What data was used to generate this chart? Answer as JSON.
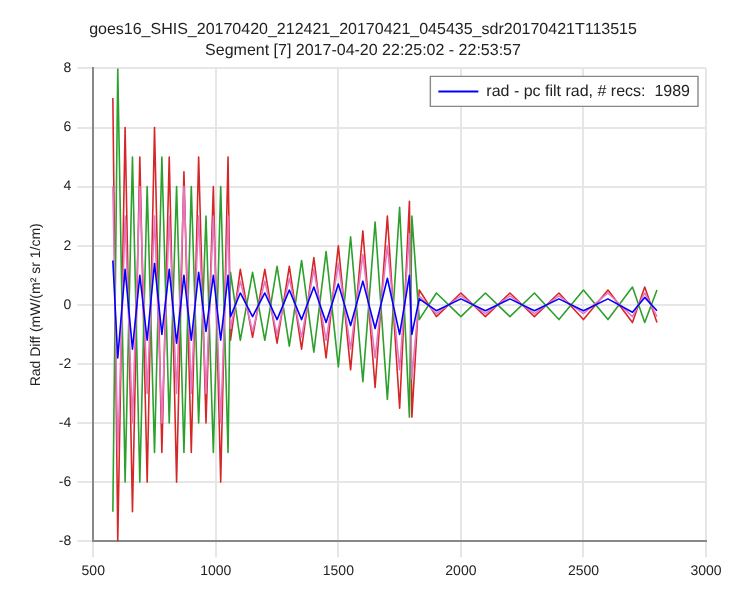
{
  "chart_data": {
    "type": "line",
    "title": "goes16_SHIS_20170420_212421_20170421_045435_sdr20170421T113515",
    "subtitle": "Segment [7] 2017-04-20 22:25:02 - 22:53:57",
    "ylabel": "Rad Diff (mW/(m² sr 1/cm)",
    "x": [
      580,
      600,
      630,
      660,
      690,
      720,
      750,
      780,
      810,
      840,
      870,
      900,
      930,
      960,
      990,
      1020,
      1050,
      1060,
      1100,
      1150,
      1200,
      1250,
      1300,
      1350,
      1400,
      1450,
      1500,
      1550,
      1600,
      1650,
      1700,
      1750,
      1790,
      1800,
      1830,
      1900,
      2000,
      2100,
      2200,
      2300,
      2400,
      2500,
      2600,
      2700,
      2750,
      2800
    ],
    "series": [
      {
        "color": "#d62728",
        "values": [
          7,
          -8,
          6,
          -7,
          5,
          -6,
          6,
          -5,
          5,
          -6,
          4.5,
          -5,
          5,
          -4,
          4,
          -6,
          5,
          -1.2,
          1.2,
          -1.1,
          1.2,
          -1.3,
          1.3,
          -1.5,
          1.6,
          -1.8,
          2,
          -2.2,
          2.5,
          -2.8,
          3,
          -3.5,
          3.5,
          -3.8,
          0.5,
          -0.4,
          0.4,
          -0.4,
          0.4,
          -0.4,
          0.4,
          -0.5,
          0.5,
          -0.6,
          0.6,
          -0.6
        ]
      },
      {
        "color": "#2ca02c",
        "values": [
          -7,
          8,
          -6,
          5,
          -6,
          4,
          -5,
          5,
          -4,
          4,
          -5,
          4,
          -4,
          3,
          -5,
          4,
          -5,
          1.1,
          -1.2,
          1.1,
          -1.2,
          1.3,
          -1.4,
          1.5,
          -1.6,
          1.8,
          -2.1,
          2.3,
          -2.6,
          2.8,
          -3.2,
          3.3,
          -3.8,
          3,
          -0.5,
          0.4,
          -0.4,
          0.4,
          -0.4,
          0.4,
          -0.5,
          0.5,
          -0.5,
          0.6,
          -0.6,
          0.5
        ]
      },
      {
        "color": "#e377c2",
        "values": [
          4,
          -5,
          3,
          -4,
          4,
          -3,
          3,
          -4,
          3,
          -3,
          4,
          -3,
          3,
          -3,
          3,
          -4,
          3,
          -0.8,
          0.8,
          -0.9,
          0.8,
          -1,
          0.9,
          -1.1,
          1.2,
          -1.2,
          1.4,
          -1.5,
          1.7,
          -1.8,
          2,
          -2.2,
          2.4,
          -2.5,
          0.3,
          -0.3,
          0.3,
          -0.3,
          0.3,
          -0.3,
          0.3,
          -0.3,
          0.4,
          -0.4,
          0.4,
          -0.4
        ]
      },
      {
        "name": "rad - pc filt rad, # recs:  1989",
        "color": "#0000ff",
        "values": [
          1.5,
          -1.8,
          1.2,
          -1.5,
          1,
          -1.2,
          1.4,
          -1,
          1.2,
          -1.3,
          1,
          -1.2,
          1.1,
          -0.9,
          1,
          -1.2,
          1,
          -0.4,
          0.4,
          -0.4,
          0.4,
          -0.5,
          0.5,
          -0.5,
          0.6,
          -0.6,
          0.7,
          -0.7,
          0.8,
          -0.8,
          0.9,
          -1,
          1,
          -1,
          0.2,
          -0.2,
          0.2,
          -0.2,
          0.2,
          -0.2,
          0.2,
          -0.2,
          0.2,
          -0.25,
          0.25,
          -0.2
        ]
      }
    ],
    "xlim": [
      500,
      3000
    ],
    "xticks": [
      500,
      1000,
      1500,
      2000,
      2500,
      3000
    ],
    "ylim": [
      -8,
      8
    ],
    "yticks": [
      -8,
      -6,
      -4,
      -2,
      0,
      2,
      4,
      6,
      8
    ],
    "grid": true,
    "legend": "top right",
    "line_style": "solid"
  }
}
